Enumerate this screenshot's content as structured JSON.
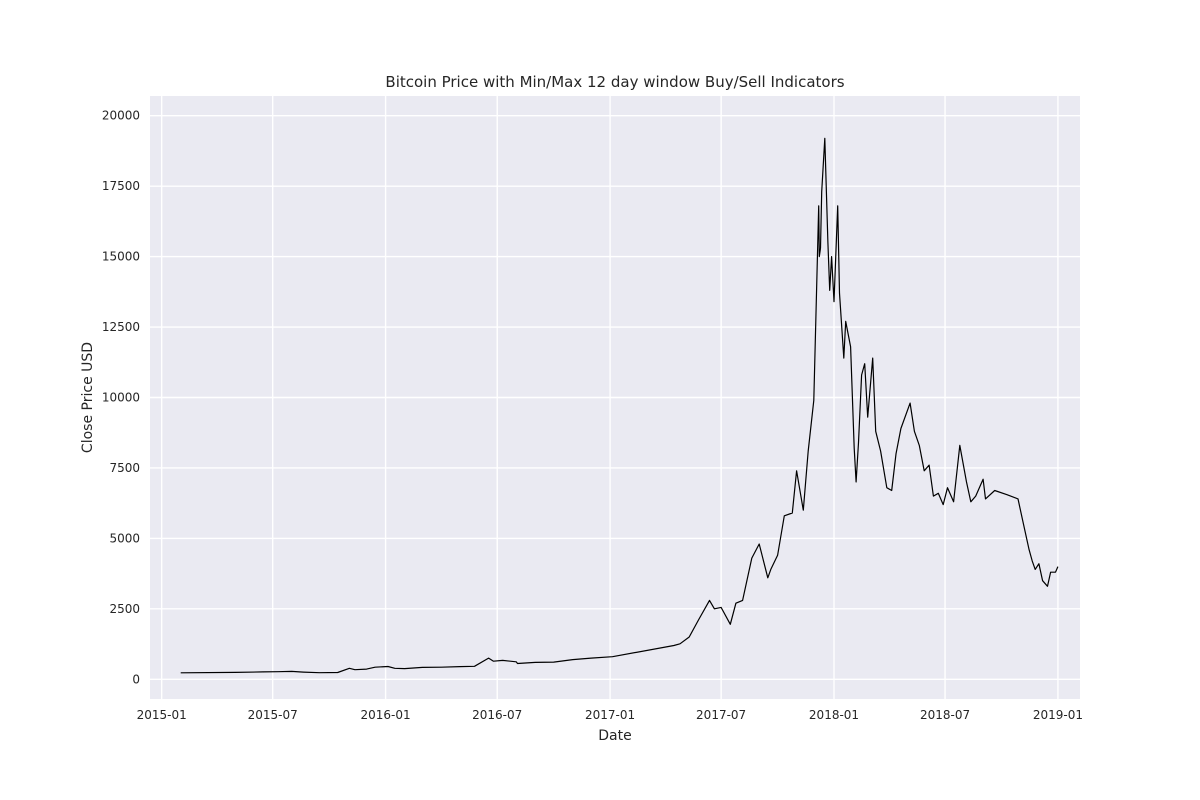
{
  "chart_data": {
    "type": "line",
    "title": "Bitcoin Price with Min/Max 12 day window Buy/Sell Indicators",
    "xlabel": "Date",
    "ylabel": "Close Price USD",
    "xlim": [
      "2014-12-13",
      "2019-02-06"
    ],
    "ylim": [
      -700,
      20700
    ],
    "grid": true,
    "colors": {
      "background": "#eaeaf2",
      "grid": "#ffffff",
      "line": "#000000"
    },
    "x_ticks": [
      "2015-01-01",
      "2015-07-01",
      "2016-01-01",
      "2016-07-01",
      "2017-01-01",
      "2017-07-01",
      "2018-01-01",
      "2018-07-01",
      "2019-01-01"
    ],
    "x_tick_labels": [
      "2015-01",
      "2015-07",
      "2016-01",
      "2016-07",
      "2017-01",
      "2017-07",
      "2018-01",
      "2018-07",
      "2019-01"
    ],
    "y_ticks": [
      0,
      2500,
      5000,
      7500,
      10000,
      12500,
      15000,
      17500,
      20000
    ],
    "y_tick_labels": [
      "0",
      "2500",
      "5000",
      "7500",
      "10000",
      "12500",
      "15000",
      "17500",
      "20000"
    ],
    "series": [
      {
        "color": "#000000",
        "x": [
          "2015-02-01",
          "2015-05-01",
          "2015-06-15",
          "2015-07-10",
          "2015-08-01",
          "2015-08-20",
          "2015-09-15",
          "2015-10-15",
          "2015-11-03",
          "2015-11-12",
          "2015-12-01",
          "2015-12-15",
          "2016-01-05",
          "2016-01-16",
          "2016-02-01",
          "2016-03-01",
          "2016-04-01",
          "2016-05-01",
          "2016-05-25",
          "2016-06-17",
          "2016-06-25",
          "2016-07-10",
          "2016-08-01",
          "2016-08-03",
          "2016-09-01",
          "2016-10-01",
          "2016-11-01",
          "2016-12-01",
          "2017-01-05",
          "2017-04-15",
          "2017-04-25",
          "2017-05-10",
          "2017-05-25",
          "2017-06-12",
          "2017-06-20",
          "2017-07-01",
          "2017-07-16",
          "2017-07-25",
          "2017-08-05",
          "2017-08-20",
          "2017-09-01",
          "2017-09-15",
          "2017-09-20",
          "2017-10-01",
          "2017-10-12",
          "2017-10-25",
          "2017-11-01",
          "2017-11-12",
          "2017-11-20",
          "2017-11-29",
          "2017-12-07",
          "2017-12-08",
          "2017-12-10",
          "2017-12-12",
          "2017-12-17",
          "2017-12-22",
          "2017-12-25",
          "2017-12-28",
          "2018-01-01",
          "2018-01-07",
          "2018-01-10",
          "2018-01-17",
          "2018-01-20",
          "2018-01-28",
          "2018-02-03",
          "2018-02-06",
          "2018-02-10",
          "2018-02-15",
          "2018-02-20",
          "2018-02-25",
          "2018-03-05",
          "2018-03-10",
          "2018-03-18",
          "2018-03-28",
          "2018-04-05",
          "2018-04-12",
          "2018-04-20",
          "2018-05-05",
          "2018-05-12",
          "2018-05-20",
          "2018-05-28",
          "2018-06-05",
          "2018-06-12",
          "2018-06-20",
          "2018-06-28",
          "2018-07-05",
          "2018-07-15",
          "2018-07-25",
          "2018-08-05",
          "2018-08-12",
          "2018-08-20",
          "2018-09-01",
          "2018-09-05",
          "2018-09-20",
          "2018-10-10",
          "2018-10-28",
          "2018-11-05",
          "2018-11-15",
          "2018-11-20",
          "2018-11-25",
          "2018-12-01",
          "2018-12-07",
          "2018-12-15",
          "2018-12-20",
          "2018-12-28",
          "2019-01-01"
        ],
        "y": [
          230,
          245,
          260,
          270,
          280,
          255,
          235,
          240,
          390,
          340,
          360,
          430,
          455,
          390,
          380,
          420,
          430,
          450,
          460,
          750,
          640,
          670,
          620,
          560,
          600,
          610,
          700,
          750,
          800,
          1200,
          1260,
          1500,
          2100,
          2800,
          2500,
          2550,
          1950,
          2700,
          2800,
          4300,
          4800,
          3600,
          3900,
          4400,
          5800,
          5900,
          7400,
          6000,
          8100,
          9900,
          16800,
          15000,
          15300,
          17300,
          19200,
          15500,
          13800,
          15000,
          13400,
          16800,
          13700,
          11400,
          12700,
          11800,
          8200,
          7000,
          8400,
          10800,
          11200,
          9300,
          11400,
          8800,
          8100,
          6800,
          6700,
          8000,
          8900,
          9800,
          8800,
          8300,
          7400,
          7600,
          6500,
          6600,
          6200,
          6800,
          6300,
          8300,
          7000,
          6300,
          6500,
          7100,
          6400,
          6700,
          6550,
          6400,
          5600,
          4600,
          4200,
          3900,
          4100,
          3500,
          3300,
          3800,
          3800,
          4000
        ]
      }
    ]
  }
}
